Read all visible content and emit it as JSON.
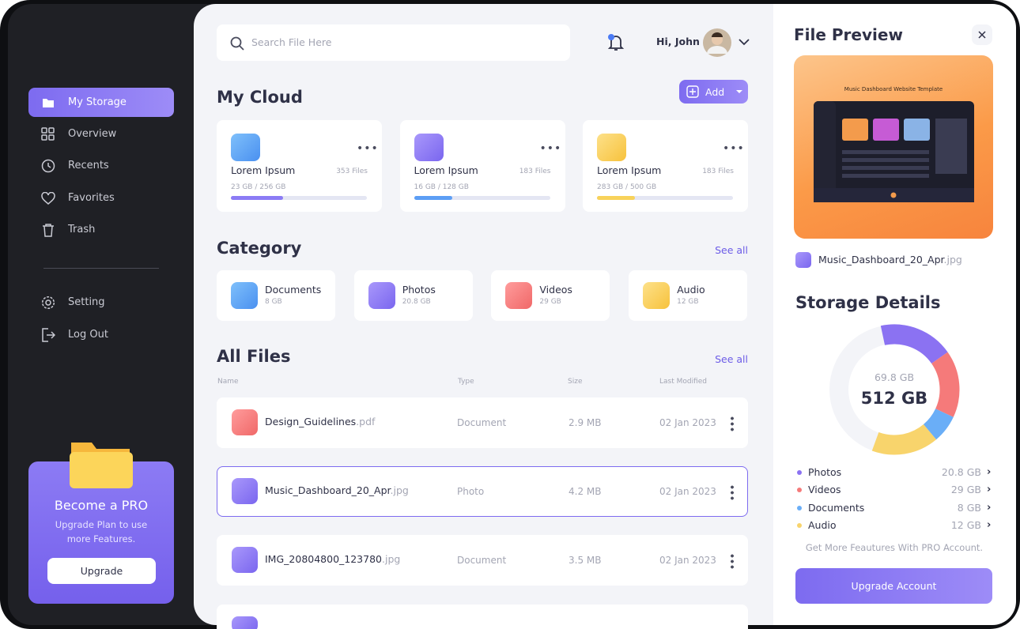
{
  "sidebar": {
    "menu": [
      "My Storage",
      "Overview",
      "Recents",
      "Favorites",
      "Trash"
    ],
    "settings": [
      "Setting",
      "Log Out"
    ],
    "promo": {
      "title": "Become a PRO",
      "text": "Upgrade Plan to use more Features.",
      "button": "Upgrade"
    }
  },
  "header": {
    "search_placeholder": "Search File Here",
    "greeting": "Hi, John"
  },
  "cloud": {
    "title": "My Cloud",
    "add": "Add",
    "cards": [
      {
        "name": "Lorem Ipsum",
        "files": "353 Files",
        "usage": "23 GB / 256 GB"
      },
      {
        "name": "Lorem Ipsum",
        "files": "183 Files",
        "usage": "16 GB / 128 GB"
      },
      {
        "name": "Lorem Ipsum",
        "files": "183 Files",
        "usage": "283 GB / 500 GB"
      }
    ]
  },
  "category": {
    "title": "Category",
    "see_all": "See all",
    "items": [
      {
        "name": "Documents",
        "size": "8 GB"
      },
      {
        "name": "Photos",
        "size": "20.8 GB"
      },
      {
        "name": "Videos",
        "size": "29 GB"
      },
      {
        "name": "Audio",
        "size": "12 GB"
      }
    ]
  },
  "files": {
    "title": "All Files",
    "see_all": "See all",
    "columns": [
      "Name",
      "Type",
      "Size",
      "Last Modified"
    ],
    "rows": [
      {
        "name": "Design_Guidelines",
        "ext": ".pdf",
        "type": "Document",
        "size": "2.9 MB",
        "date": "02 Jan 2023"
      },
      {
        "name": "Music_Dashboard_20_Apr",
        "ext": ".jpg",
        "type": "Photo",
        "size": "4.2 MB",
        "date": "02 Jan 2023"
      },
      {
        "name": "IMG_20804800_123780",
        "ext": ".jpg",
        "type": "Document",
        "size": "3.5 MB",
        "date": "02 Jan 2023"
      }
    ]
  },
  "preview": {
    "title": "File Preview",
    "thumbnail_title": "Music Dashboard Website Template",
    "file_name": "Music_Dashboard_20_Apr",
    "ext": ".jpg"
  },
  "storage": {
    "title": "Storage Details",
    "used": "69.8 GB",
    "total": "512 GB",
    "items": [
      {
        "name": "Photos",
        "size": "20.8 GB",
        "color": "#8b72f2"
      },
      {
        "name": "Videos",
        "size": "29 GB",
        "color": "#f57a7a"
      },
      {
        "name": "Documents",
        "size": "8 GB",
        "color": "#6aaef7"
      },
      {
        "name": "Audio",
        "size": "12 GB",
        "color": "#f8d46c"
      }
    ],
    "note": "Get More Feautures With PRO Account.",
    "button": "Upgrade Account"
  }
}
